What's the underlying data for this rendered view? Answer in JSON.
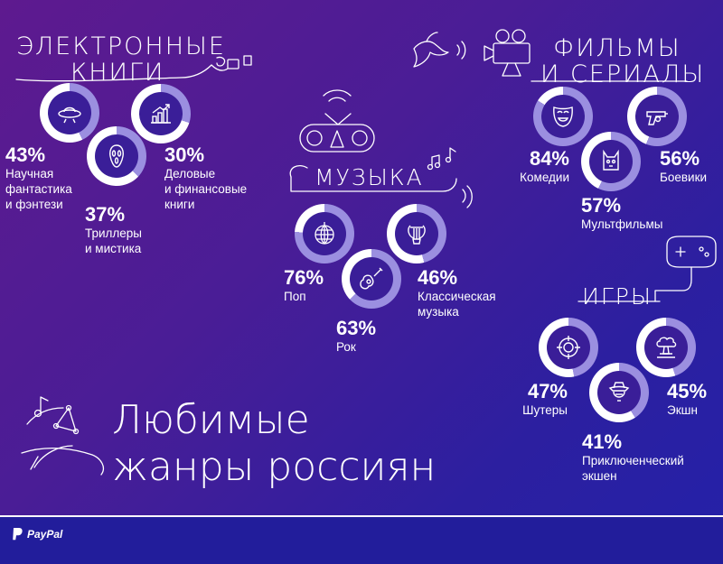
{
  "colors": {
    "track": "#ffffff",
    "fill": "#9b8fe0",
    "bg_start": "#5e1a8f",
    "bg_end": "#2421a8"
  },
  "title": {
    "line1": "Любимые",
    "line2": "жанры россиян"
  },
  "footer": {
    "brand": "PayPal"
  },
  "chart_data": [
    {
      "type": "pie",
      "title_lines": [
        "ЭЛЕКТРОННЫЕ",
        "КНИГИ"
      ],
      "series": [
        {
          "name": "Научная фантастика и фэнтези",
          "label_lines": [
            "Научная",
            "фантастика",
            "и фэнтези"
          ],
          "value": 43,
          "value_text": "43%",
          "icon": "ufo-icon"
        },
        {
          "name": "Триллеры и мистика",
          "label_lines": [
            "Триллеры",
            "и мистика"
          ],
          "value": 37,
          "value_text": "37%",
          "icon": "scream-mask-icon"
        },
        {
          "name": "Деловые и финансовые книги",
          "label_lines": [
            "Деловые",
            "и финансовые",
            "книги"
          ],
          "value": 30,
          "value_text": "30%",
          "icon": "growth-chart-icon"
        }
      ]
    },
    {
      "type": "pie",
      "title_lines": [
        "МУЗЫКА"
      ],
      "series": [
        {
          "name": "Поп",
          "label_lines": [
            "Поп"
          ],
          "value": 76,
          "value_text": "76%",
          "icon": "disco-ball-icon"
        },
        {
          "name": "Рок",
          "label_lines": [
            "Рок"
          ],
          "value": 63,
          "value_text": "63%",
          "icon": "guitar-icon"
        },
        {
          "name": "Классическая музыка",
          "label_lines": [
            "Классическая",
            "музыка"
          ],
          "value": 46,
          "value_text": "46%",
          "icon": "lyre-icon"
        }
      ]
    },
    {
      "type": "pie",
      "title_lines": [
        "ФИЛЬМЫ",
        "И СЕРИАЛЫ"
      ],
      "series": [
        {
          "name": "Комедии",
          "label_lines": [
            "Комедии"
          ],
          "value": 84,
          "value_text": "84%",
          "icon": "comedy-mask-icon"
        },
        {
          "name": "Мультфильмы",
          "label_lines": [
            "Мультфильмы"
          ],
          "value": 57,
          "value_text": "57%",
          "icon": "cartoon-cat-icon"
        },
        {
          "name": "Боевики",
          "label_lines": [
            "Боевики"
          ],
          "value": 56,
          "value_text": "56%",
          "icon": "revolver-icon"
        }
      ]
    },
    {
      "type": "pie",
      "title_lines": [
        "ИГРЫ"
      ],
      "series": [
        {
          "name": "Шутеры",
          "label_lines": [
            "Шутеры"
          ],
          "value": 47,
          "value_text": "47%",
          "icon": "crosshair-icon"
        },
        {
          "name": "Приключенческий экшен",
          "label_lines": [
            "Приключенческий",
            "экшен"
          ],
          "value": 41,
          "value_text": "41%",
          "icon": "adventurer-icon"
        },
        {
          "name": "Экшн",
          "label_lines": [
            "Экшн"
          ],
          "value": 45,
          "value_text": "45%",
          "icon": "nuclear-explosion-icon"
        }
      ]
    }
  ]
}
